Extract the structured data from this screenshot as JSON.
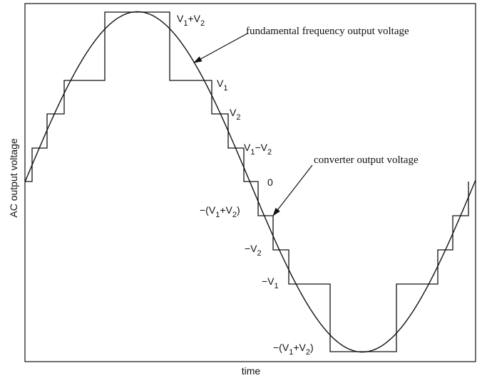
{
  "axes": {
    "y_label": "AC output voltage",
    "x_label": "time"
  },
  "annotations": [
    {
      "text": "fundamental frequency output voltage"
    },
    {
      "text": "converter output voltage"
    }
  ],
  "levels": [
    {
      "parts": [
        "V",
        "1",
        "+V",
        "2"
      ]
    },
    {
      "parts": [
        "V",
        "1"
      ]
    },
    {
      "parts": [
        "V",
        "2"
      ]
    },
    {
      "parts": [
        "V",
        "1",
        "−V",
        "2"
      ]
    },
    {
      "parts": [
        "0"
      ]
    },
    {
      "parts": [
        "−(V",
        "1",
        "+V",
        "2",
        ")"
      ]
    },
    {
      "parts": [
        "−V",
        "2"
      ]
    },
    {
      "parts": [
        "−V",
        "1"
      ]
    },
    {
      "parts": [
        "−(V",
        "1",
        "+V",
        "2",
        ")"
      ]
    }
  ]
}
